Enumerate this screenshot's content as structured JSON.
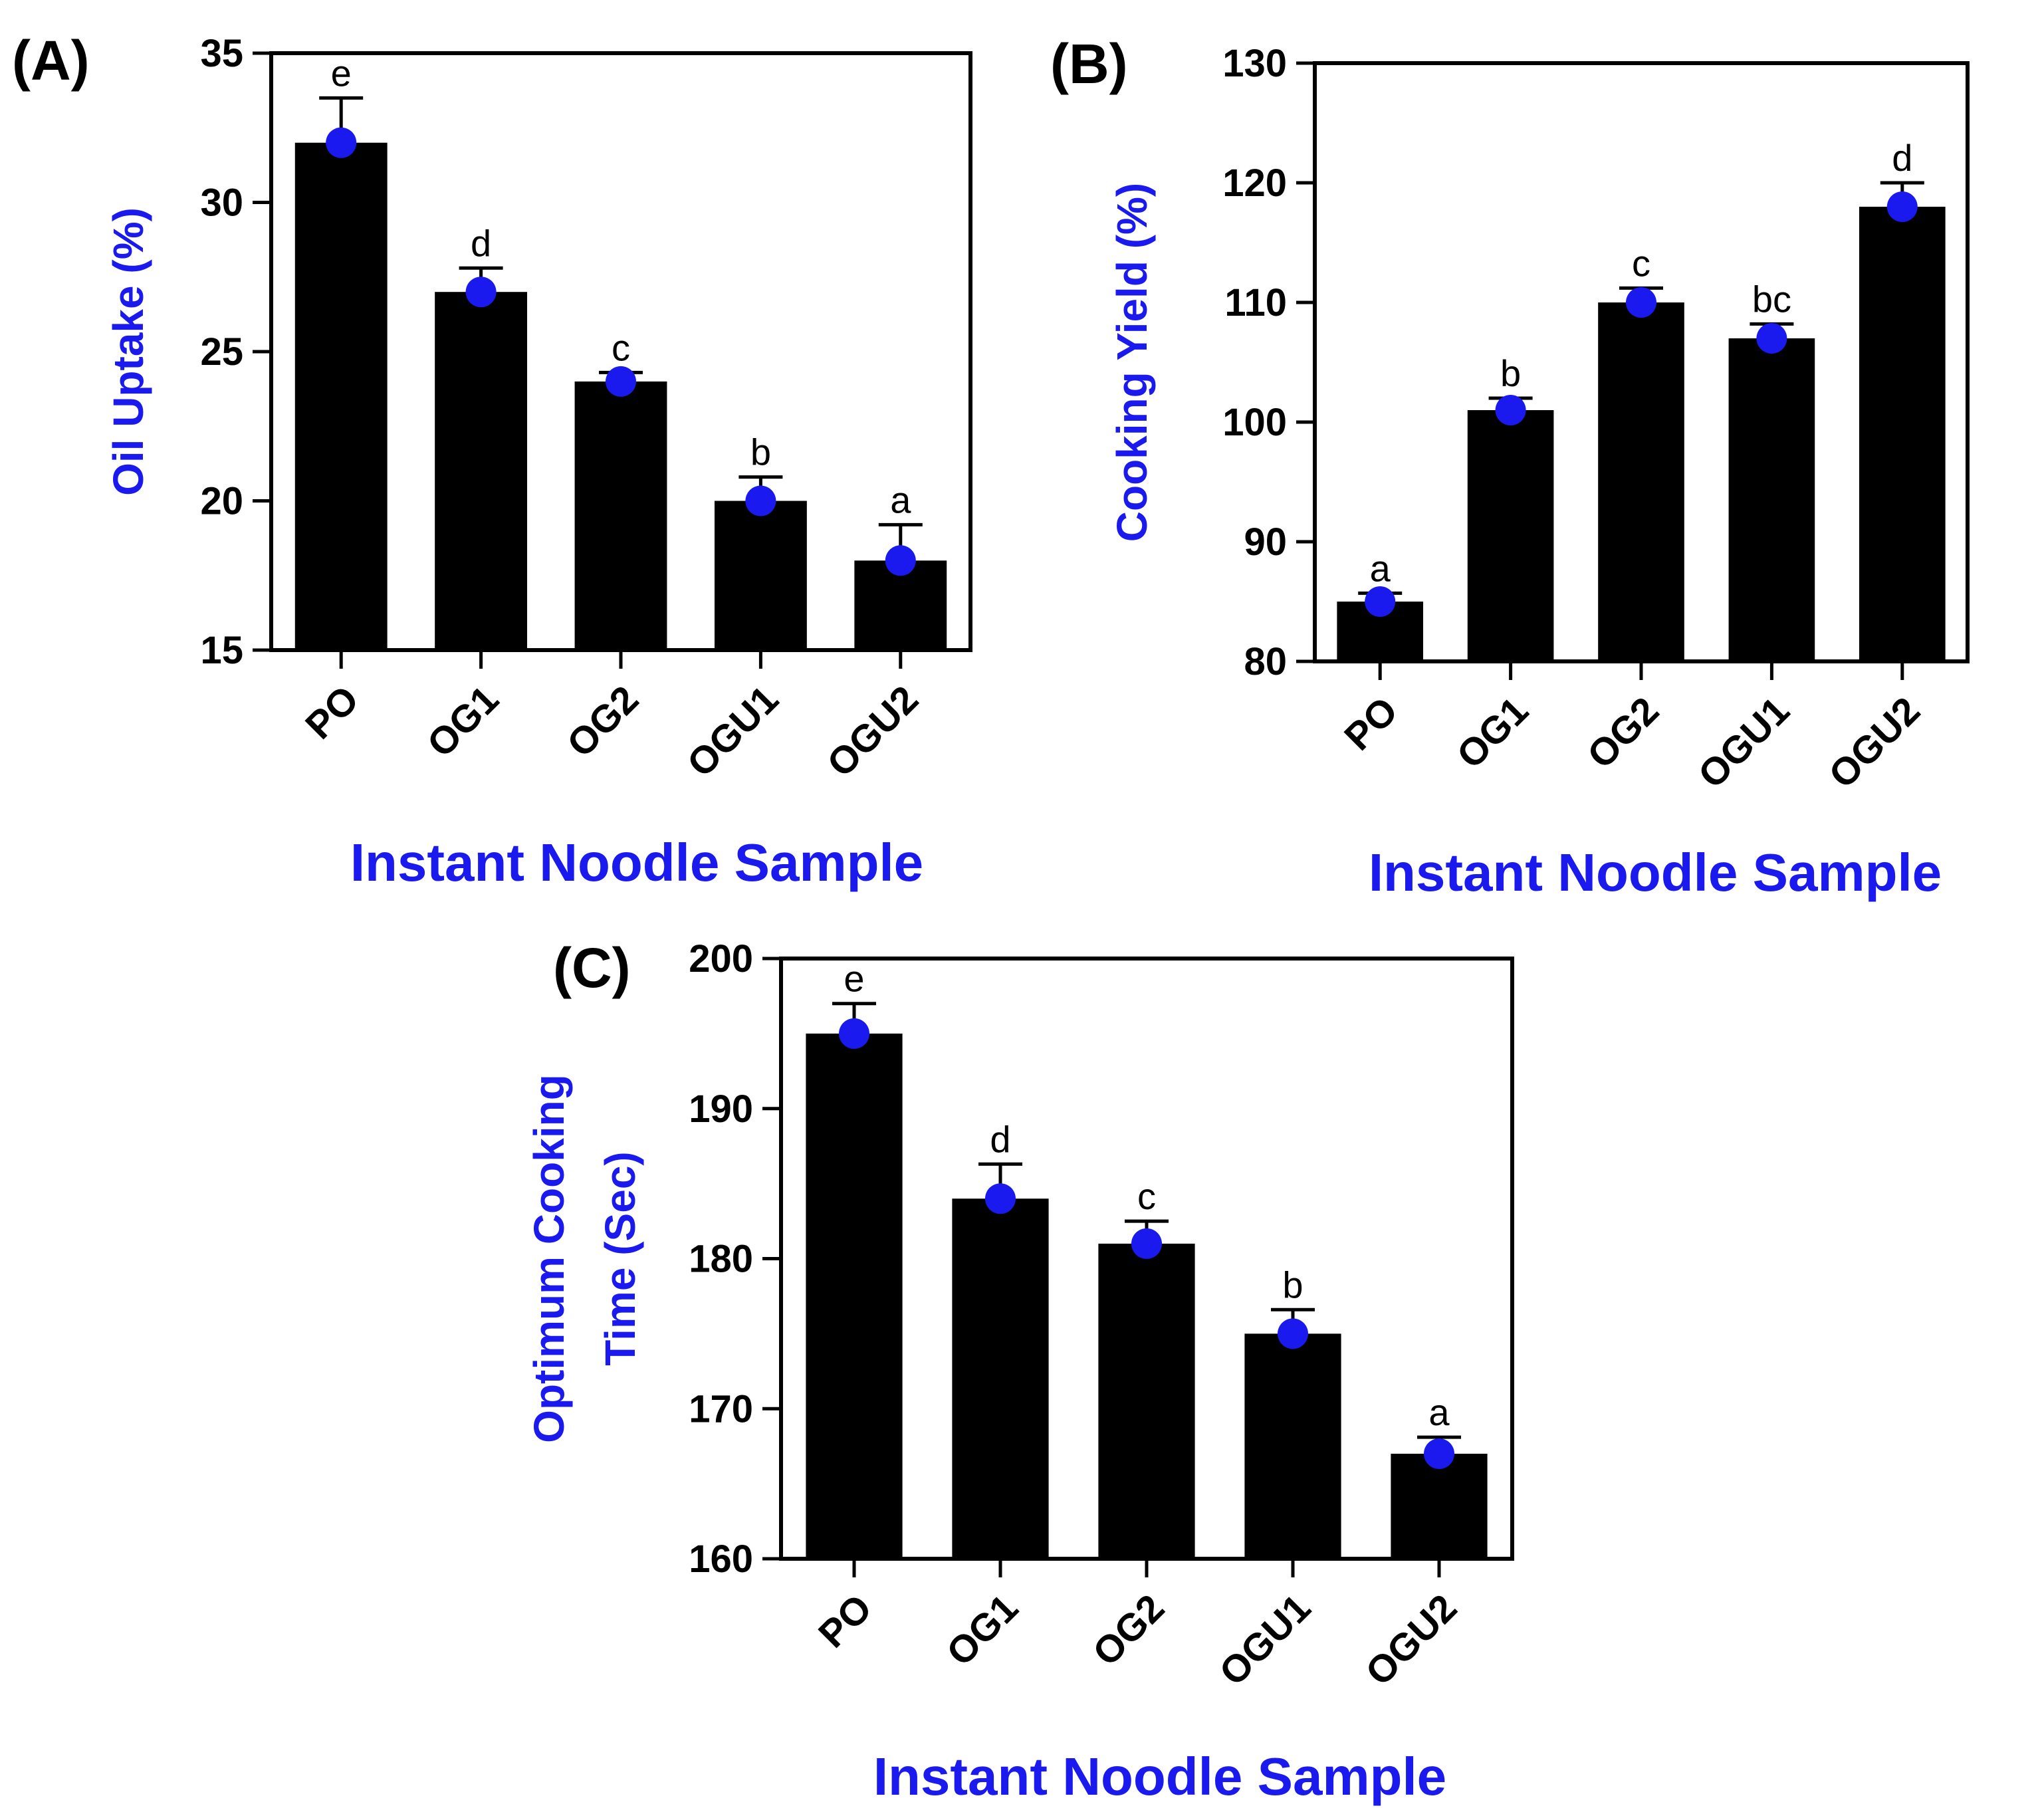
{
  "chart_data": [
    {
      "type": "bar",
      "panel_label": "(A)",
      "title": "",
      "categories": [
        "PO",
        "OG1",
        "OG2",
        "OGU1",
        "OGU2"
      ],
      "values": [
        32,
        27,
        24,
        20,
        18
      ],
      "errors": [
        1.5,
        0.8,
        0.3,
        0.8,
        1.2
      ],
      "significance": [
        "e",
        "d",
        "c",
        "b",
        "a"
      ],
      "xlabel": "Instant Noodle Sample",
      "ylabel": [
        "Oil Uptake (%)"
      ],
      "ylim": [
        15,
        35
      ],
      "yticks": [
        15,
        20,
        25,
        30,
        35
      ],
      "grid": false
    },
    {
      "type": "bar",
      "panel_label": "(B)",
      "title": "",
      "categories": [
        "PO",
        "OG1",
        "OG2",
        "OGU1",
        "OGU2"
      ],
      "values": [
        85,
        101,
        110,
        107,
        118
      ],
      "errors": [
        0.7,
        1.0,
        1.2,
        1.2,
        2.0
      ],
      "significance": [
        "a",
        "b",
        "c",
        "bc",
        "d"
      ],
      "xlabel": "Instant Noodle Sample",
      "ylabel": [
        "Cooking Yield (%)"
      ],
      "ylim": [
        80,
        130
      ],
      "yticks": [
        80,
        90,
        100,
        110,
        120,
        130
      ],
      "grid": false
    },
    {
      "type": "bar",
      "panel_label": "(C)",
      "title": "",
      "categories": [
        "PO",
        "OG1",
        "OG2",
        "OGU1",
        "OGU2"
      ],
      "values": [
        195,
        184,
        181,
        175,
        167
      ],
      "errors": [
        2.0,
        2.3,
        1.5,
        1.6,
        1.1
      ],
      "significance": [
        "e",
        "d",
        "c",
        "b",
        "a"
      ],
      "xlabel": "Instant Noodle Sample",
      "ylabel": [
        "Optimum Cooking",
        "Time (Sec)"
      ],
      "ylim": [
        160,
        200
      ],
      "yticks": [
        160,
        170,
        180,
        190,
        200
      ],
      "grid": false
    }
  ],
  "colors": {
    "bar": "#000000",
    "point": "#1a1aee",
    "axis_title": "#1a1aee",
    "axis": "#000000"
  }
}
